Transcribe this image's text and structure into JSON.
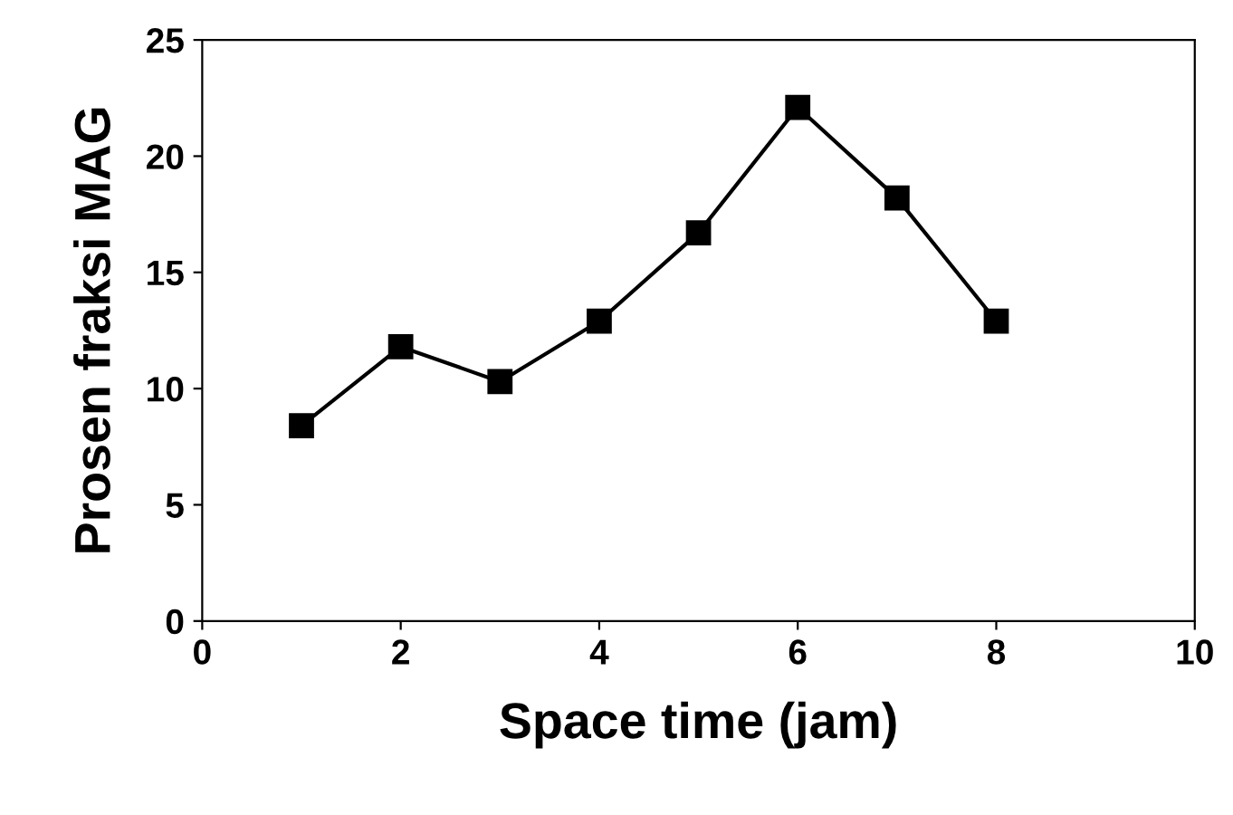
{
  "chart_data": {
    "type": "line",
    "xlabel": "Space time (jam)",
    "ylabel": "Prosen fraksi MAG",
    "x": [
      1,
      2,
      3,
      4,
      5,
      6,
      7,
      8
    ],
    "series": [
      {
        "color": "#000000",
        "values": [
          8.4,
          11.8,
          10.3,
          12.9,
          16.7,
          22.1,
          18.2,
          12.9
        ]
      }
    ],
    "xlim": [
      0,
      10
    ],
    "xticks": [
      0,
      2,
      4,
      6,
      8,
      10
    ],
    "ylim": [
      0,
      25
    ],
    "yticks": [
      0,
      5,
      10,
      15,
      20,
      25
    ],
    "marker": "square",
    "line_style": "solid",
    "grid": false,
    "legend": false
  }
}
